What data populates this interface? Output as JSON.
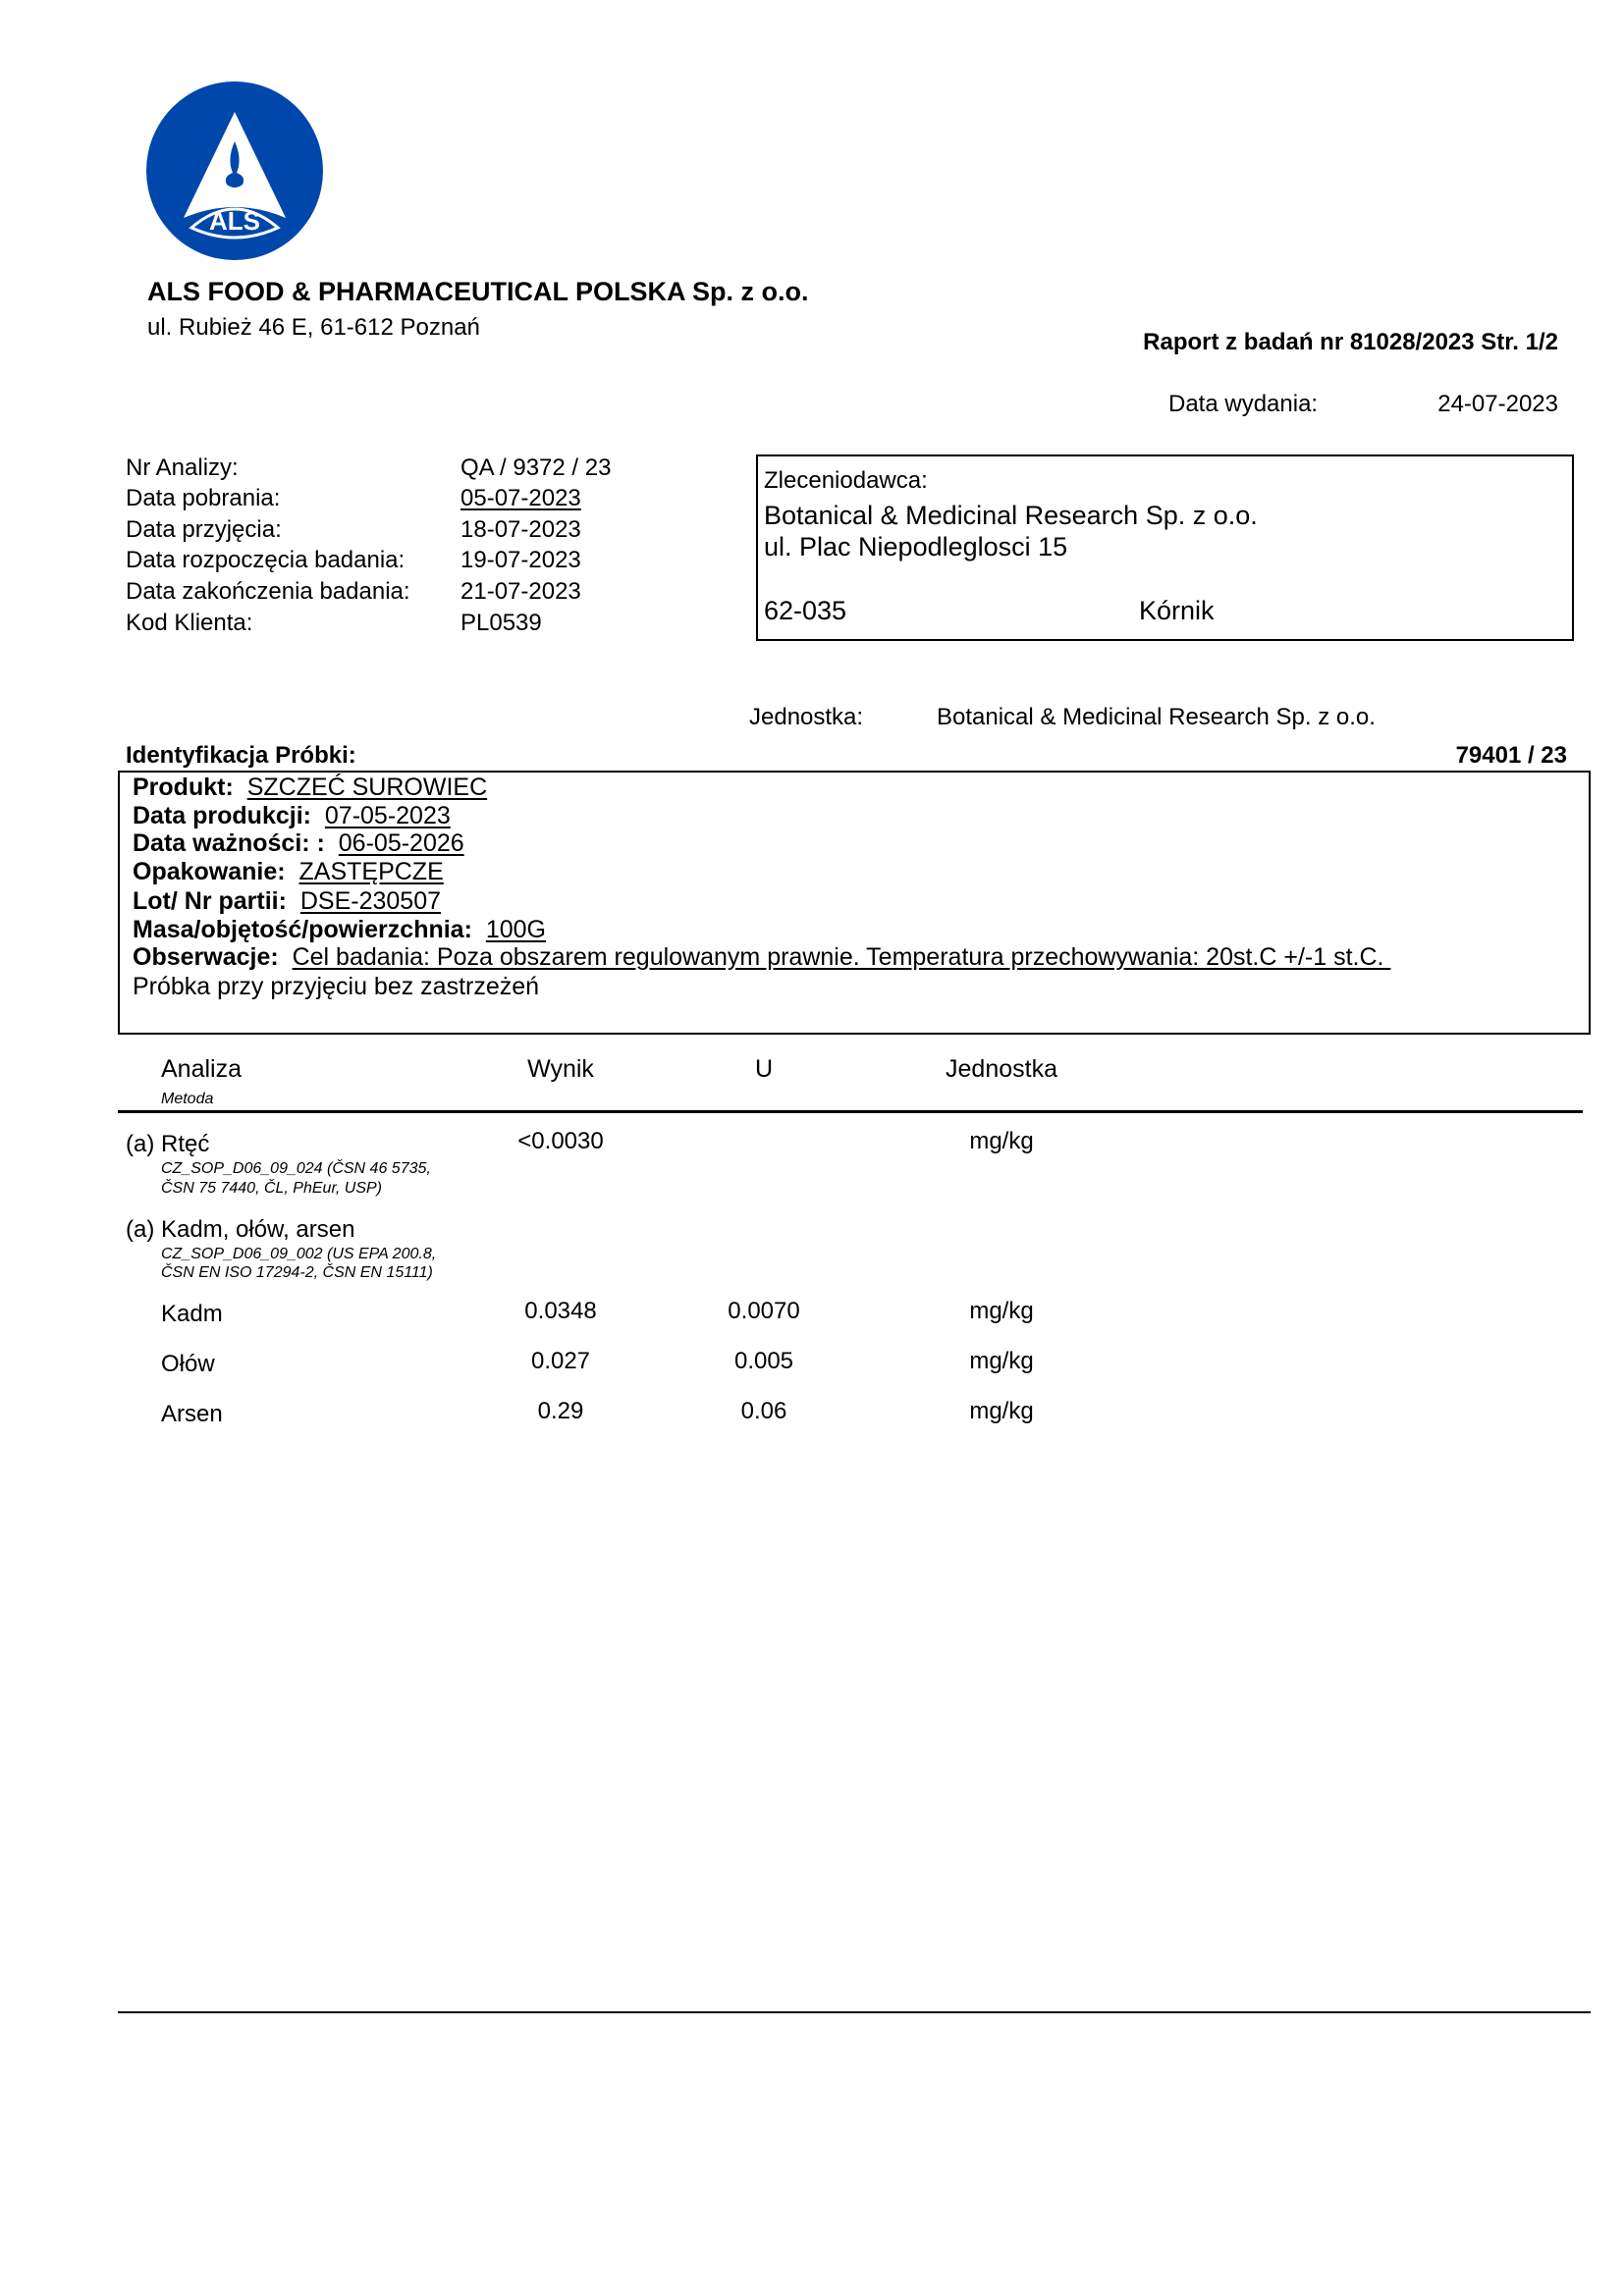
{
  "brand": {
    "logo_text": "ALS",
    "logo_color": "#0047AB"
  },
  "header": {
    "company": "ALS FOOD & PHARMACEUTICAL POLSKA Sp. z o.o.",
    "address": "ul. Rubież 46 E, 61-612 Poznań",
    "report": "Raport z badań nr 81028/2023   Str. 1/2",
    "issue_label": "Data wydania:",
    "issue_value": "24-07-2023"
  },
  "info": [
    {
      "label": "Nr Analizy:",
      "value": "QA / 9372 / 23"
    },
    {
      "label": "Data pobrania:",
      "value": "05-07-2023"
    },
    {
      "label": "Data przyjęcia:",
      "value": "18-07-2023"
    },
    {
      "label": "Data rozpoczęcia badania:",
      "value": "19-07-2023"
    },
    {
      "label": "Data zakończenia badania:",
      "value": "21-07-2023"
    },
    {
      "label": "Kod Klienta:",
      "value": "PL0539"
    }
  ],
  "client": {
    "label": "Zleceniodawca:",
    "name": "Botanical & Medicinal Research Sp. z o.o.",
    "street": "ul. Plac Niepodleglosci 15",
    "postcode": "62-035",
    "city": "Kórnik"
  },
  "unit": {
    "label": "Jednostka:",
    "value": "Botanical & Medicinal Research Sp. z o.o."
  },
  "sample": {
    "title": "Identyfikacja Próbki:",
    "number": "79401 / 23",
    "fields": [
      {
        "label": "Produkt:",
        "value": "SZCZEĆ SUROWIEC"
      },
      {
        "label": "Data produkcji:",
        "value": "07-05-2023"
      },
      {
        "label": "Data ważności: :",
        "value": "06-05-2026"
      },
      {
        "label": "Opakowanie:",
        "value": "ZASTĘPCZE"
      },
      {
        "label": "Lot/ Nr partii:",
        "value": "DSE-230507"
      },
      {
        "label": "Masa/objętość/powierzchnia:",
        "value": "100G"
      },
      {
        "label": "Obserwacje:",
        "value": "Cel badania: Poza obszarem regulowanym prawnie. Temperatura przechowywania: 20st.C +/-1 st.C. "
      }
    ],
    "note": "Próbka przy przyjęciu bez zastrzeżeń"
  },
  "table": {
    "headers": {
      "analiza": "Analiza",
      "metoda": "Metoda",
      "wynik": "Wynik",
      "u": "U",
      "jednostka": "Jednostka"
    },
    "groups": [
      {
        "name": "(a) Rtęć",
        "method1": "CZ_SOP_D06_09_024 (ČSN 46 5735,",
        "method2": "ČSN 75 7440, ČL, PhEur, USP)",
        "result": "<0.0030",
        "unit": "mg/kg"
      },
      {
        "name": "(a) Kadm, ołów, arsen",
        "method1": "CZ_SOP_D06_09_002 (US EPA 200.8,",
        "method2": "ČSN EN ISO 17294-2, ČSN EN 15111)"
      }
    ],
    "rows": [
      {
        "name": "Kadm",
        "result": "0.0348",
        "u": "0.0070",
        "unit": "mg/kg"
      },
      {
        "name": "Ołów",
        "result": "0.027",
        "u": "0.005",
        "unit": "mg/kg"
      },
      {
        "name": "Arsen",
        "result": "0.29",
        "u": "0.06",
        "unit": "mg/kg"
      }
    ]
  }
}
